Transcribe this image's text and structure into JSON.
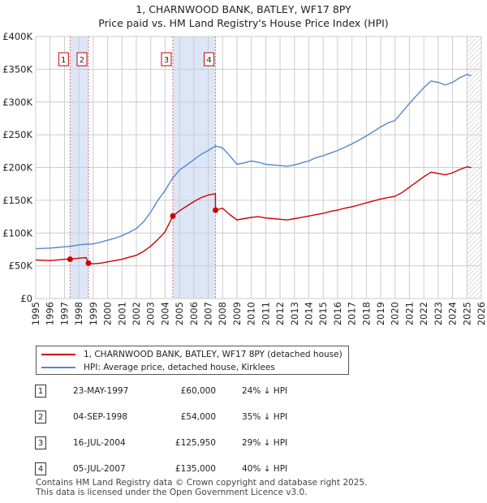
{
  "chart_data": {
    "type": "line",
    "title": "1, CHARNWOOD BANK, BATLEY, WF17 8PY",
    "subtitle": "Price paid vs. HM Land Registry's House Price Index (HPI)",
    "xlim": [
      1995,
      2026
    ],
    "ylim": [
      0,
      400000
    ],
    "x_ticks": [
      "1995",
      "1996",
      "1997",
      "1998",
      "1999",
      "2000",
      "2001",
      "2002",
      "2003",
      "2004",
      "2005",
      "2006",
      "2007",
      "2008",
      "2009",
      "2010",
      "2011",
      "2012",
      "2013",
      "2014",
      "2015",
      "2016",
      "2017",
      "2018",
      "2019",
      "2020",
      "2021",
      "2022",
      "2023",
      "2024",
      "2025",
      "2026"
    ],
    "y_ticks": [
      {
        "value": 0,
        "label": "£0"
      },
      {
        "value": 50000,
        "label": "£50K"
      },
      {
        "value": 100000,
        "label": "£100K"
      },
      {
        "value": 150000,
        "label": "£150K"
      },
      {
        "value": 200000,
        "label": "£200K"
      },
      {
        "value": 250000,
        "label": "£250K"
      },
      {
        "value": 300000,
        "label": "£300K"
      },
      {
        "value": 350000,
        "label": "£350K"
      },
      {
        "value": 400000,
        "label": "£400K"
      }
    ],
    "shaded_periods": [
      [
        1997.39,
        1998.67
      ],
      [
        2004.54,
        2007.51
      ]
    ],
    "future_hatch_from": 2025.0,
    "series": [
      {
        "name": "1, CHARNWOOD BANK, BATLEY, WF17 8PY (detached house)",
        "color": "#cc0000",
        "points": [
          [
            1995,
            59000
          ],
          [
            1995.5,
            58500
          ],
          [
            1996,
            58000
          ],
          [
            1996.5,
            59000
          ],
          [
            1997,
            60000
          ],
          [
            1997.39,
            60000
          ],
          [
            1997.8,
            61000
          ],
          [
            1998.2,
            62000
          ],
          [
            1998.5,
            62500
          ],
          [
            1998.67,
            54000
          ],
          [
            1999,
            53000
          ],
          [
            1999.5,
            54000
          ],
          [
            2000,
            56000
          ],
          [
            2000.5,
            58000
          ],
          [
            2001,
            60000
          ],
          [
            2001.5,
            63000
          ],
          [
            2002,
            66000
          ],
          [
            2002.5,
            72000
          ],
          [
            2003,
            80000
          ],
          [
            2003.5,
            90000
          ],
          [
            2004,
            102000
          ],
          [
            2004.54,
            125950
          ],
          [
            2005,
            134000
          ],
          [
            2005.5,
            141000
          ],
          [
            2006,
            148000
          ],
          [
            2006.5,
            154000
          ],
          [
            2007,
            158000
          ],
          [
            2007.5,
            160000
          ],
          [
            2007.51,
            135000
          ],
          [
            2008,
            138000
          ],
          [
            2008.5,
            128000
          ],
          [
            2009,
            120000
          ],
          [
            2009.5,
            122000
          ],
          [
            2010,
            124000
          ],
          [
            2010.5,
            125000
          ],
          [
            2011,
            123000
          ],
          [
            2011.5,
            122000
          ],
          [
            2012,
            121000
          ],
          [
            2012.5,
            120000
          ],
          [
            2013,
            122000
          ],
          [
            2013.5,
            124000
          ],
          [
            2014,
            126000
          ],
          [
            2014.5,
            128000
          ],
          [
            2015,
            130000
          ],
          [
            2015.5,
            133000
          ],
          [
            2016,
            135000
          ],
          [
            2016.5,
            138000
          ],
          [
            2017,
            140000
          ],
          [
            2017.5,
            143000
          ],
          [
            2018,
            146000
          ],
          [
            2018.5,
            149000
          ],
          [
            2019,
            152000
          ],
          [
            2019.5,
            154000
          ],
          [
            2020,
            156000
          ],
          [
            2020.5,
            162000
          ],
          [
            2021,
            170000
          ],
          [
            2021.5,
            178000
          ],
          [
            2022,
            186000
          ],
          [
            2022.5,
            193000
          ],
          [
            2023,
            191000
          ],
          [
            2023.5,
            189000
          ],
          [
            2024,
            192000
          ],
          [
            2024.5,
            197000
          ],
          [
            2025,
            201000
          ],
          [
            2025.3,
            200000
          ]
        ]
      },
      {
        "name": "HPI: Average price, detached house, Kirklees",
        "color": "#5588cc",
        "points": [
          [
            1995,
            76000
          ],
          [
            1995.5,
            76500
          ],
          [
            1996,
            77000
          ],
          [
            1996.5,
            78000
          ],
          [
            1997,
            79000
          ],
          [
            1997.5,
            80000
          ],
          [
            1998,
            82000
          ],
          [
            1998.5,
            83000
          ],
          [
            1999,
            83500
          ],
          [
            1999.5,
            86000
          ],
          [
            2000,
            89000
          ],
          [
            2000.5,
            92000
          ],
          [
            2001,
            96000
          ],
          [
            2001.5,
            101000
          ],
          [
            2002,
            107000
          ],
          [
            2002.5,
            117000
          ],
          [
            2003,
            132000
          ],
          [
            2003.5,
            150000
          ],
          [
            2004,
            165000
          ],
          [
            2004.5,
            183000
          ],
          [
            2005,
            196000
          ],
          [
            2005.5,
            204000
          ],
          [
            2006,
            212000
          ],
          [
            2006.5,
            220000
          ],
          [
            2007,
            226000
          ],
          [
            2007.5,
            233000
          ],
          [
            2008,
            230000
          ],
          [
            2008.5,
            218000
          ],
          [
            2009,
            205000
          ],
          [
            2009.5,
            207000
          ],
          [
            2010,
            210000
          ],
          [
            2010.5,
            208000
          ],
          [
            2011,
            205000
          ],
          [
            2011.5,
            204000
          ],
          [
            2012,
            203000
          ],
          [
            2012.5,
            202000
          ],
          [
            2013,
            204000
          ],
          [
            2013.5,
            207000
          ],
          [
            2014,
            210000
          ],
          [
            2014.5,
            215000
          ],
          [
            2015,
            218000
          ],
          [
            2015.5,
            222000
          ],
          [
            2016,
            226000
          ],
          [
            2016.5,
            231000
          ],
          [
            2017,
            236000
          ],
          [
            2017.5,
            242000
          ],
          [
            2018,
            248000
          ],
          [
            2018.5,
            255000
          ],
          [
            2019,
            262000
          ],
          [
            2019.5,
            268000
          ],
          [
            2020,
            272000
          ],
          [
            2020.5,
            285000
          ],
          [
            2021,
            298000
          ],
          [
            2021.5,
            310000
          ],
          [
            2022,
            322000
          ],
          [
            2022.5,
            332000
          ],
          [
            2023,
            330000
          ],
          [
            2023.5,
            326000
          ],
          [
            2024,
            330000
          ],
          [
            2024.5,
            337000
          ],
          [
            2025,
            342000
          ],
          [
            2025.3,
            340000
          ]
        ]
      }
    ],
    "sales": [
      {
        "num": "1",
        "x": 1997.39,
        "price": 60000
      },
      {
        "num": "2",
        "x": 1998.67,
        "price": 54000
      },
      {
        "num": "3",
        "x": 2004.54,
        "price": 125950
      },
      {
        "num": "4",
        "x": 2007.51,
        "price": 135000
      }
    ]
  },
  "legend": {
    "property_label": "1, CHARNWOOD BANK, BATLEY, WF17 8PY (detached house)",
    "hpi_label": "HPI: Average price, detached house, Kirklees"
  },
  "sales_table": [
    {
      "num": "1",
      "date": "23-MAY-1997",
      "price": "£60,000",
      "pct": "24% ↓ HPI"
    },
    {
      "num": "2",
      "date": "04-SEP-1998",
      "price": "£54,000",
      "pct": "35% ↓ HPI"
    },
    {
      "num": "3",
      "date": "16-JUL-2004",
      "price": "£125,950",
      "pct": "29% ↓ HPI"
    },
    {
      "num": "4",
      "date": "05-JUL-2007",
      "price": "£135,000",
      "pct": "40% ↓ HPI"
    }
  ],
  "footer": {
    "line1": "Contains HM Land Registry data © Crown copyright and database right 2025.",
    "line2": "This data is licensed under the Open Government Licence v3.0."
  },
  "colors": {
    "property": "#cc0000",
    "hpi": "#5588cc",
    "shade": "#dde6f7",
    "grid": "#cccccc"
  }
}
